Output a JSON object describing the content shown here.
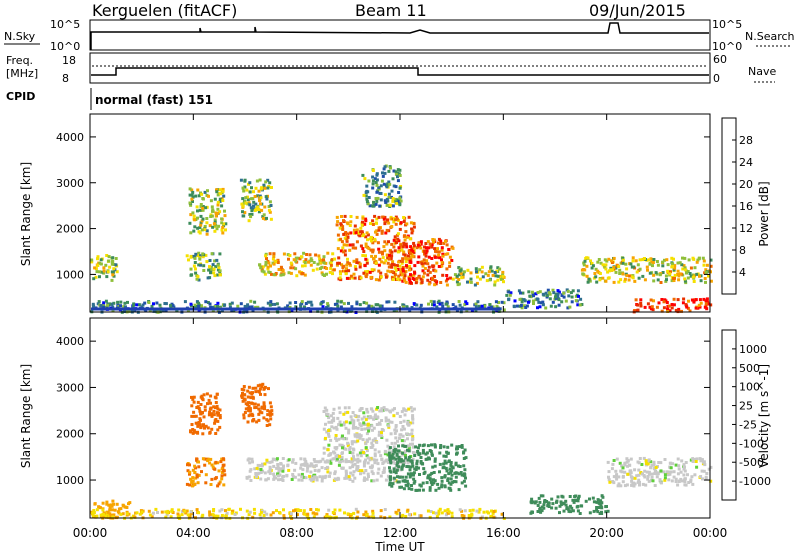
{
  "header": {
    "station": "Kerguelen (fitACF)",
    "beam": "Beam 11",
    "date": "09/Jun/2015"
  },
  "summary_panels": {
    "nsky_label": "N.Sky",
    "nsky_ticks": [
      "10^5",
      "10^0"
    ],
    "nsearch_label": "N.Search",
    "nsearch_ticks": [
      "10^5",
      "10^0"
    ],
    "freq_label_line1": "Freq.",
    "freq_label_line2": "[MHz]",
    "freq_ticks": [
      "18",
      "8"
    ],
    "nave_label": "Nave",
    "nave_ticks": [
      "60",
      "0"
    ],
    "cpid_label": "CPID",
    "cpid_value": "normal (fast) 151"
  },
  "axes": {
    "ylabel": "Slant Range [km]",
    "yticks": [
      "4000",
      "3000",
      "2000",
      "1000"
    ],
    "xticks": [
      "00:00",
      "04:00",
      "08:00",
      "12:00",
      "16:00",
      "20:00",
      "00:00"
    ],
    "xlabel": "Time UT"
  },
  "power_scale": {
    "label": "Power [dB]",
    "ticks": [
      "28",
      "24",
      "20",
      "16",
      "12",
      "8",
      "4"
    ],
    "colors": [
      "#0000ff",
      "#1f4fa8",
      "#2e6f8f",
      "#3c8c5a",
      "#8fbf3a",
      "#f5e000",
      "#f7a400",
      "#f06a00",
      "#e83000",
      "#ff0000"
    ]
  },
  "velocity_scale": {
    "label": "Velocity [m s^-1]",
    "ticks": [
      "1000",
      "500",
      "100",
      "25",
      "-25",
      "-100",
      "-500",
      "-1000"
    ],
    "colors": [
      "#2044c0",
      "#2f6aa8",
      "#3f8c5a",
      "#5fcf3a",
      "#c8c8c8",
      "#f5e000",
      "#f7a400",
      "#f06a00",
      "#ff2000"
    ]
  },
  "chart_data": {
    "type": "heatmap",
    "time_range_hours": [
      0,
      24
    ],
    "range_limits_km": [
      180,
      4500
    ],
    "freq_mhz": [
      {
        "t": 0,
        "v": 10
      },
      {
        "t": 1,
        "v": 12
      },
      {
        "t": 13,
        "v": 10
      },
      {
        "t": 24,
        "v": 10
      }
    ],
    "power_regions": [
      {
        "t0": 0.0,
        "t1": 1.0,
        "r0": 900,
        "r1": 1500,
        "db": 14
      },
      {
        "t0": 3.7,
        "t1": 5.0,
        "r0": 900,
        "r1": 1500,
        "db": 12
      },
      {
        "t0": 3.8,
        "t1": 5.2,
        "r0": 1900,
        "r1": 2900,
        "db": 14
      },
      {
        "t0": 5.8,
        "t1": 7.0,
        "r0": 2200,
        "r1": 3100,
        "db": 14
      },
      {
        "t0": 6.5,
        "t1": 9.5,
        "r0": 1000,
        "r1": 1500,
        "db": 18
      },
      {
        "t0": 9.5,
        "t1": 12.5,
        "r0": 900,
        "r1": 2300,
        "db": 22
      },
      {
        "t0": 10.5,
        "t1": 12.0,
        "r0": 2500,
        "r1": 3400,
        "db": 10
      },
      {
        "t0": 12.0,
        "t1": 14.0,
        "r0": 800,
        "r1": 1800,
        "db": 24
      },
      {
        "t0": 14.0,
        "t1": 16.0,
        "r0": 800,
        "r1": 1200,
        "db": 14
      },
      {
        "t0": 16.0,
        "t1": 19.0,
        "r0": 300,
        "r1": 700,
        "db": 8
      },
      {
        "t0": 19.0,
        "t1": 24.0,
        "r0": 850,
        "r1": 1400,
        "db": 16
      },
      {
        "t0": 21.0,
        "t1": 24.0,
        "r0": 200,
        "r1": 500,
        "db": 26
      },
      {
        "t0": 0.0,
        "t1": 16.0,
        "r0": 200,
        "r1": 450,
        "db": 8
      }
    ],
    "velocity_regions": [
      {
        "t0": 0.0,
        "t1": 1.5,
        "r0": 200,
        "r1": 600,
        "v": -100
      },
      {
        "t0": 3.7,
        "t1": 5.2,
        "r0": 900,
        "r1": 1500,
        "v": -300
      },
      {
        "t0": 3.8,
        "t1": 5.0,
        "r0": 2000,
        "r1": 2900,
        "v": -500
      },
      {
        "t0": 5.8,
        "t1": 7.0,
        "r0": 2200,
        "r1": 3100,
        "v": -500
      },
      {
        "t0": 6.0,
        "t1": 12.0,
        "r0": 1000,
        "r1": 1500,
        "v": 0
      },
      {
        "t0": 9.0,
        "t1": 12.5,
        "r0": 1400,
        "r1": 2600,
        "v": 0
      },
      {
        "t0": 11.5,
        "t1": 14.5,
        "r0": 800,
        "r1": 1800,
        "v": 100
      },
      {
        "t0": 17.0,
        "t1": 20.0,
        "r0": 300,
        "r1": 700,
        "v": 200
      },
      {
        "t0": 20.0,
        "t1": 24.0,
        "r0": 900,
        "r1": 1500,
        "v": 0
      },
      {
        "t0": 0.0,
        "t1": 16.0,
        "r0": 200,
        "r1": 400,
        "v": -50
      }
    ]
  }
}
